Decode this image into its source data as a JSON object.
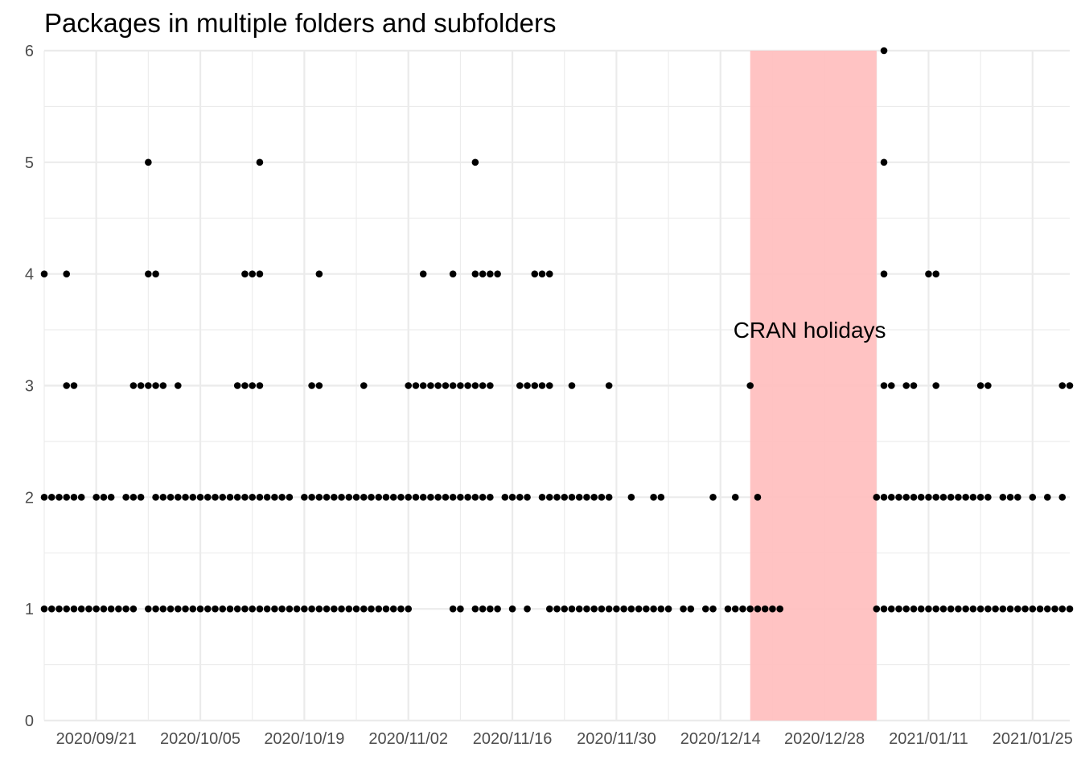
{
  "chart_data": {
    "type": "scatter",
    "title": "Packages in multiple folders and subfolders",
    "xlabel": "",
    "ylabel": "",
    "x_type": "date",
    "xlim": [
      "2020-09-14",
      "2021-01-30"
    ],
    "ylim": [
      0,
      6
    ],
    "x_ticks": [
      "2020/09/21",
      "2020/10/05",
      "2020/10/19",
      "2020/11/02",
      "2020/11/16",
      "2020/11/30",
      "2020/12/14",
      "2020/12/28",
      "2021/01/11",
      "2021/01/25"
    ],
    "y_ticks": [
      "0",
      "1",
      "2",
      "3",
      "4",
      "5",
      "6"
    ],
    "grid": true,
    "legend": "none",
    "point_color": "#000000",
    "annotations": [
      {
        "type": "shaded-range",
        "x_start": "2020-12-18",
        "x_end": "2021-01-04",
        "color": "#ffc0c0"
      },
      {
        "type": "text",
        "text": "CRAN holidays",
        "x": "2020-12-26",
        "y": 3.5
      }
    ],
    "points": [
      {
        "x": "2020-09-14",
        "y": 1
      },
      {
        "x": "2020-09-15",
        "y": 1
      },
      {
        "x": "2020-09-16",
        "y": 1
      },
      {
        "x": "2020-09-17",
        "y": 1
      },
      {
        "x": "2020-09-18",
        "y": 1
      },
      {
        "x": "2020-09-19",
        "y": 1
      },
      {
        "x": "2020-09-20",
        "y": 1
      },
      {
        "x": "2020-09-21",
        "y": 1
      },
      {
        "x": "2020-09-22",
        "y": 1
      },
      {
        "x": "2020-09-23",
        "y": 1
      },
      {
        "x": "2020-09-24",
        "y": 1
      },
      {
        "x": "2020-09-25",
        "y": 1
      },
      {
        "x": "2020-09-26",
        "y": 1
      },
      {
        "x": "2020-09-28",
        "y": 1
      },
      {
        "x": "2020-09-29",
        "y": 1
      },
      {
        "x": "2020-09-30",
        "y": 1
      },
      {
        "x": "2020-10-01",
        "y": 1
      },
      {
        "x": "2020-10-02",
        "y": 1
      },
      {
        "x": "2020-10-03",
        "y": 1
      },
      {
        "x": "2020-10-04",
        "y": 1
      },
      {
        "x": "2020-10-05",
        "y": 1
      },
      {
        "x": "2020-10-06",
        "y": 1
      },
      {
        "x": "2020-10-07",
        "y": 1
      },
      {
        "x": "2020-10-08",
        "y": 1
      },
      {
        "x": "2020-10-09",
        "y": 1
      },
      {
        "x": "2020-10-10",
        "y": 1
      },
      {
        "x": "2020-10-11",
        "y": 1
      },
      {
        "x": "2020-10-12",
        "y": 1
      },
      {
        "x": "2020-10-13",
        "y": 1
      },
      {
        "x": "2020-10-14",
        "y": 1
      },
      {
        "x": "2020-10-15",
        "y": 1
      },
      {
        "x": "2020-10-16",
        "y": 1
      },
      {
        "x": "2020-10-17",
        "y": 1
      },
      {
        "x": "2020-10-18",
        "y": 1
      },
      {
        "x": "2020-10-19",
        "y": 1
      },
      {
        "x": "2020-10-20",
        "y": 1
      },
      {
        "x": "2020-10-21",
        "y": 1
      },
      {
        "x": "2020-10-22",
        "y": 1
      },
      {
        "x": "2020-10-23",
        "y": 1
      },
      {
        "x": "2020-10-24",
        "y": 1
      },
      {
        "x": "2020-10-25",
        "y": 1
      },
      {
        "x": "2020-10-26",
        "y": 1
      },
      {
        "x": "2020-10-27",
        "y": 1
      },
      {
        "x": "2020-10-28",
        "y": 1
      },
      {
        "x": "2020-10-29",
        "y": 1
      },
      {
        "x": "2020-10-30",
        "y": 1
      },
      {
        "x": "2020-10-31",
        "y": 1
      },
      {
        "x": "2020-11-01",
        "y": 1
      },
      {
        "x": "2020-11-02",
        "y": 1
      },
      {
        "x": "2020-11-08",
        "y": 1
      },
      {
        "x": "2020-11-09",
        "y": 1
      },
      {
        "x": "2020-11-11",
        "y": 1
      },
      {
        "x": "2020-11-12",
        "y": 1
      },
      {
        "x": "2020-11-13",
        "y": 1
      },
      {
        "x": "2020-11-14",
        "y": 1
      },
      {
        "x": "2020-11-16",
        "y": 1
      },
      {
        "x": "2020-11-18",
        "y": 1
      },
      {
        "x": "2020-11-21",
        "y": 1
      },
      {
        "x": "2020-11-22",
        "y": 1
      },
      {
        "x": "2020-11-23",
        "y": 1
      },
      {
        "x": "2020-11-24",
        "y": 1
      },
      {
        "x": "2020-11-25",
        "y": 1
      },
      {
        "x": "2020-11-26",
        "y": 1
      },
      {
        "x": "2020-11-27",
        "y": 1
      },
      {
        "x": "2020-11-28",
        "y": 1
      },
      {
        "x": "2020-11-29",
        "y": 1
      },
      {
        "x": "2020-11-30",
        "y": 1
      },
      {
        "x": "2020-12-01",
        "y": 1
      },
      {
        "x": "2020-12-02",
        "y": 1
      },
      {
        "x": "2020-12-03",
        "y": 1
      },
      {
        "x": "2020-12-04",
        "y": 1
      },
      {
        "x": "2020-12-05",
        "y": 1
      },
      {
        "x": "2020-12-06",
        "y": 1
      },
      {
        "x": "2020-12-07",
        "y": 1
      },
      {
        "x": "2020-12-09",
        "y": 1
      },
      {
        "x": "2020-12-10",
        "y": 1
      },
      {
        "x": "2020-12-12",
        "y": 1
      },
      {
        "x": "2020-12-13",
        "y": 1
      },
      {
        "x": "2020-12-15",
        "y": 1
      },
      {
        "x": "2020-12-16",
        "y": 1
      },
      {
        "x": "2020-12-17",
        "y": 1
      },
      {
        "x": "2020-12-18",
        "y": 1
      },
      {
        "x": "2020-12-19",
        "y": 1
      },
      {
        "x": "2020-12-20",
        "y": 1
      },
      {
        "x": "2020-12-21",
        "y": 1
      },
      {
        "x": "2020-12-22",
        "y": 1
      },
      {
        "x": "2021-01-04",
        "y": 1
      },
      {
        "x": "2021-01-05",
        "y": 1
      },
      {
        "x": "2021-01-06",
        "y": 1
      },
      {
        "x": "2021-01-07",
        "y": 1
      },
      {
        "x": "2021-01-08",
        "y": 1
      },
      {
        "x": "2021-01-09",
        "y": 1
      },
      {
        "x": "2021-01-10",
        "y": 1
      },
      {
        "x": "2021-01-11",
        "y": 1
      },
      {
        "x": "2021-01-12",
        "y": 1
      },
      {
        "x": "2021-01-13",
        "y": 1
      },
      {
        "x": "2021-01-14",
        "y": 1
      },
      {
        "x": "2021-01-15",
        "y": 1
      },
      {
        "x": "2021-01-16",
        "y": 1
      },
      {
        "x": "2021-01-17",
        "y": 1
      },
      {
        "x": "2021-01-18",
        "y": 1
      },
      {
        "x": "2021-01-19",
        "y": 1
      },
      {
        "x": "2021-01-20",
        "y": 1
      },
      {
        "x": "2021-01-21",
        "y": 1
      },
      {
        "x": "2021-01-22",
        "y": 1
      },
      {
        "x": "2021-01-23",
        "y": 1
      },
      {
        "x": "2021-01-24",
        "y": 1
      },
      {
        "x": "2021-01-25",
        "y": 1
      },
      {
        "x": "2021-01-26",
        "y": 1
      },
      {
        "x": "2021-01-27",
        "y": 1
      },
      {
        "x": "2021-01-28",
        "y": 1
      },
      {
        "x": "2021-01-29",
        "y": 1
      },
      {
        "x": "2021-01-30",
        "y": 1
      },
      {
        "x": "2020-09-14",
        "y": 2
      },
      {
        "x": "2020-09-15",
        "y": 2
      },
      {
        "x": "2020-09-16",
        "y": 2
      },
      {
        "x": "2020-09-17",
        "y": 2
      },
      {
        "x": "2020-09-18",
        "y": 2
      },
      {
        "x": "2020-09-19",
        "y": 2
      },
      {
        "x": "2020-09-21",
        "y": 2
      },
      {
        "x": "2020-09-22",
        "y": 2
      },
      {
        "x": "2020-09-23",
        "y": 2
      },
      {
        "x": "2020-09-25",
        "y": 2
      },
      {
        "x": "2020-09-26",
        "y": 2
      },
      {
        "x": "2020-09-27",
        "y": 2
      },
      {
        "x": "2020-09-29",
        "y": 2
      },
      {
        "x": "2020-09-30",
        "y": 2
      },
      {
        "x": "2020-10-01",
        "y": 2
      },
      {
        "x": "2020-10-02",
        "y": 2
      },
      {
        "x": "2020-10-03",
        "y": 2
      },
      {
        "x": "2020-10-04",
        "y": 2
      },
      {
        "x": "2020-10-05",
        "y": 2
      },
      {
        "x": "2020-10-06",
        "y": 2
      },
      {
        "x": "2020-10-07",
        "y": 2
      },
      {
        "x": "2020-10-08",
        "y": 2
      },
      {
        "x": "2020-10-09",
        "y": 2
      },
      {
        "x": "2020-10-10",
        "y": 2
      },
      {
        "x": "2020-10-11",
        "y": 2
      },
      {
        "x": "2020-10-12",
        "y": 2
      },
      {
        "x": "2020-10-13",
        "y": 2
      },
      {
        "x": "2020-10-14",
        "y": 2
      },
      {
        "x": "2020-10-15",
        "y": 2
      },
      {
        "x": "2020-10-16",
        "y": 2
      },
      {
        "x": "2020-10-17",
        "y": 2
      },
      {
        "x": "2020-10-19",
        "y": 2
      },
      {
        "x": "2020-10-20",
        "y": 2
      },
      {
        "x": "2020-10-21",
        "y": 2
      },
      {
        "x": "2020-10-22",
        "y": 2
      },
      {
        "x": "2020-10-23",
        "y": 2
      },
      {
        "x": "2020-10-24",
        "y": 2
      },
      {
        "x": "2020-10-25",
        "y": 2
      },
      {
        "x": "2020-10-26",
        "y": 2
      },
      {
        "x": "2020-10-27",
        "y": 2
      },
      {
        "x": "2020-10-28",
        "y": 2
      },
      {
        "x": "2020-10-29",
        "y": 2
      },
      {
        "x": "2020-10-30",
        "y": 2
      },
      {
        "x": "2020-10-31",
        "y": 2
      },
      {
        "x": "2020-11-01",
        "y": 2
      },
      {
        "x": "2020-11-02",
        "y": 2
      },
      {
        "x": "2020-11-03",
        "y": 2
      },
      {
        "x": "2020-11-04",
        "y": 2
      },
      {
        "x": "2020-11-05",
        "y": 2
      },
      {
        "x": "2020-11-06",
        "y": 2
      },
      {
        "x": "2020-11-07",
        "y": 2
      },
      {
        "x": "2020-11-08",
        "y": 2
      },
      {
        "x": "2020-11-09",
        "y": 2
      },
      {
        "x": "2020-11-10",
        "y": 2
      },
      {
        "x": "2020-11-11",
        "y": 2
      },
      {
        "x": "2020-11-12",
        "y": 2
      },
      {
        "x": "2020-11-13",
        "y": 2
      },
      {
        "x": "2020-11-15",
        "y": 2
      },
      {
        "x": "2020-11-16",
        "y": 2
      },
      {
        "x": "2020-11-17",
        "y": 2
      },
      {
        "x": "2020-11-18",
        "y": 2
      },
      {
        "x": "2020-11-20",
        "y": 2
      },
      {
        "x": "2020-11-21",
        "y": 2
      },
      {
        "x": "2020-11-22",
        "y": 2
      },
      {
        "x": "2020-11-23",
        "y": 2
      },
      {
        "x": "2020-11-24",
        "y": 2
      },
      {
        "x": "2020-11-25",
        "y": 2
      },
      {
        "x": "2020-11-26",
        "y": 2
      },
      {
        "x": "2020-11-27",
        "y": 2
      },
      {
        "x": "2020-11-28",
        "y": 2
      },
      {
        "x": "2020-11-29",
        "y": 2
      },
      {
        "x": "2020-12-02",
        "y": 2
      },
      {
        "x": "2020-12-05",
        "y": 2
      },
      {
        "x": "2020-12-06",
        "y": 2
      },
      {
        "x": "2020-12-13",
        "y": 2
      },
      {
        "x": "2020-12-16",
        "y": 2
      },
      {
        "x": "2020-12-19",
        "y": 2
      },
      {
        "x": "2021-01-04",
        "y": 2
      },
      {
        "x": "2021-01-05",
        "y": 2
      },
      {
        "x": "2021-01-06",
        "y": 2
      },
      {
        "x": "2021-01-07",
        "y": 2
      },
      {
        "x": "2021-01-08",
        "y": 2
      },
      {
        "x": "2021-01-09",
        "y": 2
      },
      {
        "x": "2021-01-10",
        "y": 2
      },
      {
        "x": "2021-01-11",
        "y": 2
      },
      {
        "x": "2021-01-12",
        "y": 2
      },
      {
        "x": "2021-01-13",
        "y": 2
      },
      {
        "x": "2021-01-14",
        "y": 2
      },
      {
        "x": "2021-01-15",
        "y": 2
      },
      {
        "x": "2021-01-16",
        "y": 2
      },
      {
        "x": "2021-01-17",
        "y": 2
      },
      {
        "x": "2021-01-18",
        "y": 2
      },
      {
        "x": "2021-01-19",
        "y": 2
      },
      {
        "x": "2021-01-21",
        "y": 2
      },
      {
        "x": "2021-01-22",
        "y": 2
      },
      {
        "x": "2021-01-23",
        "y": 2
      },
      {
        "x": "2021-01-25",
        "y": 2
      },
      {
        "x": "2021-01-27",
        "y": 2
      },
      {
        "x": "2021-01-29",
        "y": 2
      },
      {
        "x": "2020-09-17",
        "y": 3
      },
      {
        "x": "2020-09-18",
        "y": 3
      },
      {
        "x": "2020-09-26",
        "y": 3
      },
      {
        "x": "2020-09-27",
        "y": 3
      },
      {
        "x": "2020-09-28",
        "y": 3
      },
      {
        "x": "2020-09-29",
        "y": 3
      },
      {
        "x": "2020-09-30",
        "y": 3
      },
      {
        "x": "2020-10-02",
        "y": 3
      },
      {
        "x": "2020-10-10",
        "y": 3
      },
      {
        "x": "2020-10-11",
        "y": 3
      },
      {
        "x": "2020-10-12",
        "y": 3
      },
      {
        "x": "2020-10-13",
        "y": 3
      },
      {
        "x": "2020-10-20",
        "y": 3
      },
      {
        "x": "2020-10-21",
        "y": 3
      },
      {
        "x": "2020-10-27",
        "y": 3
      },
      {
        "x": "2020-11-02",
        "y": 3
      },
      {
        "x": "2020-11-03",
        "y": 3
      },
      {
        "x": "2020-11-04",
        "y": 3
      },
      {
        "x": "2020-11-05",
        "y": 3
      },
      {
        "x": "2020-11-06",
        "y": 3
      },
      {
        "x": "2020-11-07",
        "y": 3
      },
      {
        "x": "2020-11-08",
        "y": 3
      },
      {
        "x": "2020-11-09",
        "y": 3
      },
      {
        "x": "2020-11-10",
        "y": 3
      },
      {
        "x": "2020-11-11",
        "y": 3
      },
      {
        "x": "2020-11-12",
        "y": 3
      },
      {
        "x": "2020-11-13",
        "y": 3
      },
      {
        "x": "2020-11-17",
        "y": 3
      },
      {
        "x": "2020-11-18",
        "y": 3
      },
      {
        "x": "2020-11-19",
        "y": 3
      },
      {
        "x": "2020-11-20",
        "y": 3
      },
      {
        "x": "2020-11-21",
        "y": 3
      },
      {
        "x": "2020-11-24",
        "y": 3
      },
      {
        "x": "2020-11-29",
        "y": 3
      },
      {
        "x": "2020-12-18",
        "y": 3
      },
      {
        "x": "2021-01-05",
        "y": 3
      },
      {
        "x": "2021-01-06",
        "y": 3
      },
      {
        "x": "2021-01-08",
        "y": 3
      },
      {
        "x": "2021-01-09",
        "y": 3
      },
      {
        "x": "2021-01-12",
        "y": 3
      },
      {
        "x": "2021-01-18",
        "y": 3
      },
      {
        "x": "2021-01-19",
        "y": 3
      },
      {
        "x": "2021-01-29",
        "y": 3
      },
      {
        "x": "2021-01-30",
        "y": 3
      },
      {
        "x": "2020-09-14",
        "y": 4
      },
      {
        "x": "2020-09-17",
        "y": 4
      },
      {
        "x": "2020-09-28",
        "y": 4
      },
      {
        "x": "2020-09-29",
        "y": 4
      },
      {
        "x": "2020-10-11",
        "y": 4
      },
      {
        "x": "2020-10-12",
        "y": 4
      },
      {
        "x": "2020-10-13",
        "y": 4
      },
      {
        "x": "2020-10-21",
        "y": 4
      },
      {
        "x": "2020-11-04",
        "y": 4
      },
      {
        "x": "2020-11-08",
        "y": 4
      },
      {
        "x": "2020-11-11",
        "y": 4
      },
      {
        "x": "2020-11-12",
        "y": 4
      },
      {
        "x": "2020-11-13",
        "y": 4
      },
      {
        "x": "2020-11-14",
        "y": 4
      },
      {
        "x": "2020-11-19",
        "y": 4
      },
      {
        "x": "2020-11-20",
        "y": 4
      },
      {
        "x": "2020-11-21",
        "y": 4
      },
      {
        "x": "2021-01-05",
        "y": 4
      },
      {
        "x": "2021-01-11",
        "y": 4
      },
      {
        "x": "2021-01-12",
        "y": 4
      },
      {
        "x": "2020-09-28",
        "y": 5
      },
      {
        "x": "2020-10-13",
        "y": 5
      },
      {
        "x": "2020-11-11",
        "y": 5
      },
      {
        "x": "2021-01-05",
        "y": 5
      },
      {
        "x": "2021-01-05",
        "y": 6
      }
    ]
  }
}
